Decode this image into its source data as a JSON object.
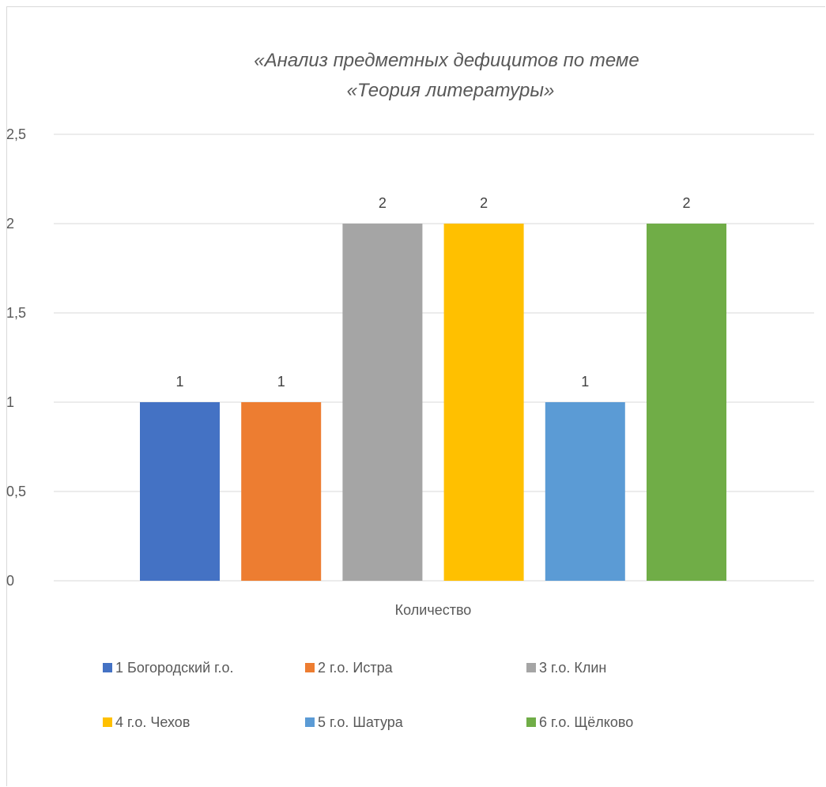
{
  "chart_data": {
    "type": "bar",
    "title_lines": [
      "«Анализ предметных дефицитов по теме",
      "«Теория литературы»"
    ],
    "categories": [
      "Количество"
    ],
    "series": [
      {
        "name": "1 Богородский г.о.",
        "values": [
          1
        ],
        "color": "#4472C4"
      },
      {
        "name": "2 г.о. Истра",
        "values": [
          1
        ],
        "color": "#ED7D31"
      },
      {
        "name": "3 г.о. Клин",
        "values": [
          2
        ],
        "color": "#A5A5A5"
      },
      {
        "name": "4 г.о. Чехов",
        "values": [
          2
        ],
        "color": "#FFC000"
      },
      {
        "name": "5 г.о. Шатура",
        "values": [
          1
        ],
        "color": "#5B9BD5"
      },
      {
        "name": "6 г.о. Щёлково",
        "values": [
          2
        ],
        "color": "#70AD47"
      }
    ],
    "ylim": [
      0,
      2.5
    ],
    "yticks": [
      "0",
      "0,5",
      "1",
      "1,5",
      "2",
      "2,5"
    ],
    "grid": true,
    "legend_position": "bottom",
    "data_labels": true
  }
}
